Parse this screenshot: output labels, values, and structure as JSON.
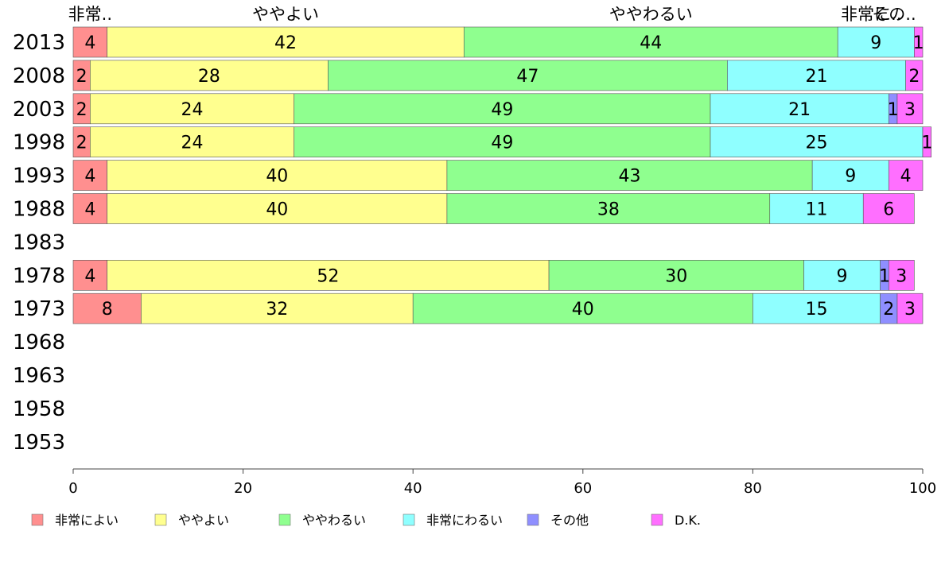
{
  "chart_data": {
    "type": "bar",
    "orientation": "horizontal",
    "stacked": true,
    "categories": [
      "2013",
      "2008",
      "2003",
      "1998",
      "1993",
      "1988",
      "1983",
      "1978",
      "1973",
      "1968",
      "1963",
      "1958",
      "1953"
    ],
    "series": [
      {
        "name": "非常によい",
        "color": "#ff8f8f",
        "values": [
          4,
          2,
          2,
          2,
          4,
          4,
          null,
          4,
          8,
          null,
          null,
          null,
          null
        ]
      },
      {
        "name": "ややよい",
        "color": "#ffff8f",
        "values": [
          42,
          28,
          24,
          24,
          40,
          40,
          null,
          52,
          32,
          null,
          null,
          null,
          null
        ]
      },
      {
        "name": "ややわるい",
        "color": "#8fff8f",
        "values": [
          44,
          47,
          49,
          49,
          43,
          38,
          null,
          30,
          40,
          null,
          null,
          null,
          null
        ]
      },
      {
        "name": "非常にわるい",
        "color": "#8fffff",
        "values": [
          9,
          21,
          21,
          25,
          9,
          11,
          null,
          9,
          15,
          null,
          null,
          null,
          null
        ]
      },
      {
        "name": "その他",
        "color": "#8f8fff",
        "values": [
          0,
          0,
          1,
          0,
          0,
          0,
          null,
          1,
          2,
          null,
          null,
          null,
          null
        ]
      },
      {
        "name": "D.K.",
        "color": "#ff6fff",
        "values": [
          1,
          2,
          3,
          1,
          4,
          6,
          null,
          3,
          3,
          null,
          null,
          null,
          null
        ]
      }
    ],
    "top_labels": [
      "非常..",
      "ややよい",
      "ややわるい",
      "非常に..",
      "その.."
    ],
    "xlim": [
      0,
      100
    ],
    "xticks": [
      "0",
      "20",
      "40",
      "60",
      "80",
      "100"
    ],
    "grid": false,
    "legend_position": "bottom"
  }
}
